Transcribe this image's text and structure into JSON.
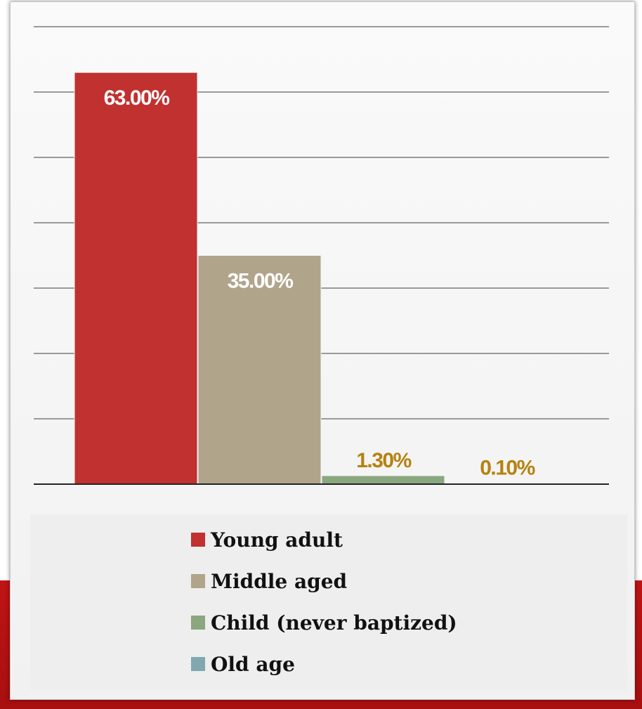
{
  "colors": {
    "young_adult": "#c0312f",
    "middle_aged": "#b0a48b",
    "child": "#8aa77f",
    "old_age": "#7fa9ae",
    "label_inside": "#ffffff",
    "label_outside": "#b5820f",
    "background_band": "#bf1414"
  },
  "chart_data": {
    "type": "bar",
    "title": "",
    "xlabel": "",
    "ylabel": "",
    "ylim": [
      0,
      70
    ],
    "grid": true,
    "legend_position": "bottom",
    "categories": [
      "Young adult",
      "Middle aged",
      "Child (never baptized)",
      "Old age"
    ],
    "values": [
      63.0,
      35.0,
      1.3,
      0.1
    ],
    "data_labels": [
      "63.00%",
      "35.00%",
      "1.30%",
      "0.10%"
    ],
    "series": [
      {
        "name": "Young adult",
        "value": 63.0,
        "label": "63.00%",
        "color": "#c0312f"
      },
      {
        "name": "Middle aged",
        "value": 35.0,
        "label": "35.00%",
        "color": "#b0a48b"
      },
      {
        "name": "Child (never baptized)",
        "value": 1.3,
        "label": "1.30%",
        "color": "#8aa77f"
      },
      {
        "name": "Old age",
        "value": 0.1,
        "label": "0.10%",
        "color": "#7fa9ae"
      }
    ]
  },
  "legend": {
    "items": [
      {
        "label": "Young adult",
        "color": "#c0312f"
      },
      {
        "label": "Middle aged",
        "color": "#b0a48b"
      },
      {
        "label": "Child (never baptized)",
        "color": "#8aa77f"
      },
      {
        "label": "Old age",
        "color": "#7fa9ae"
      }
    ]
  }
}
